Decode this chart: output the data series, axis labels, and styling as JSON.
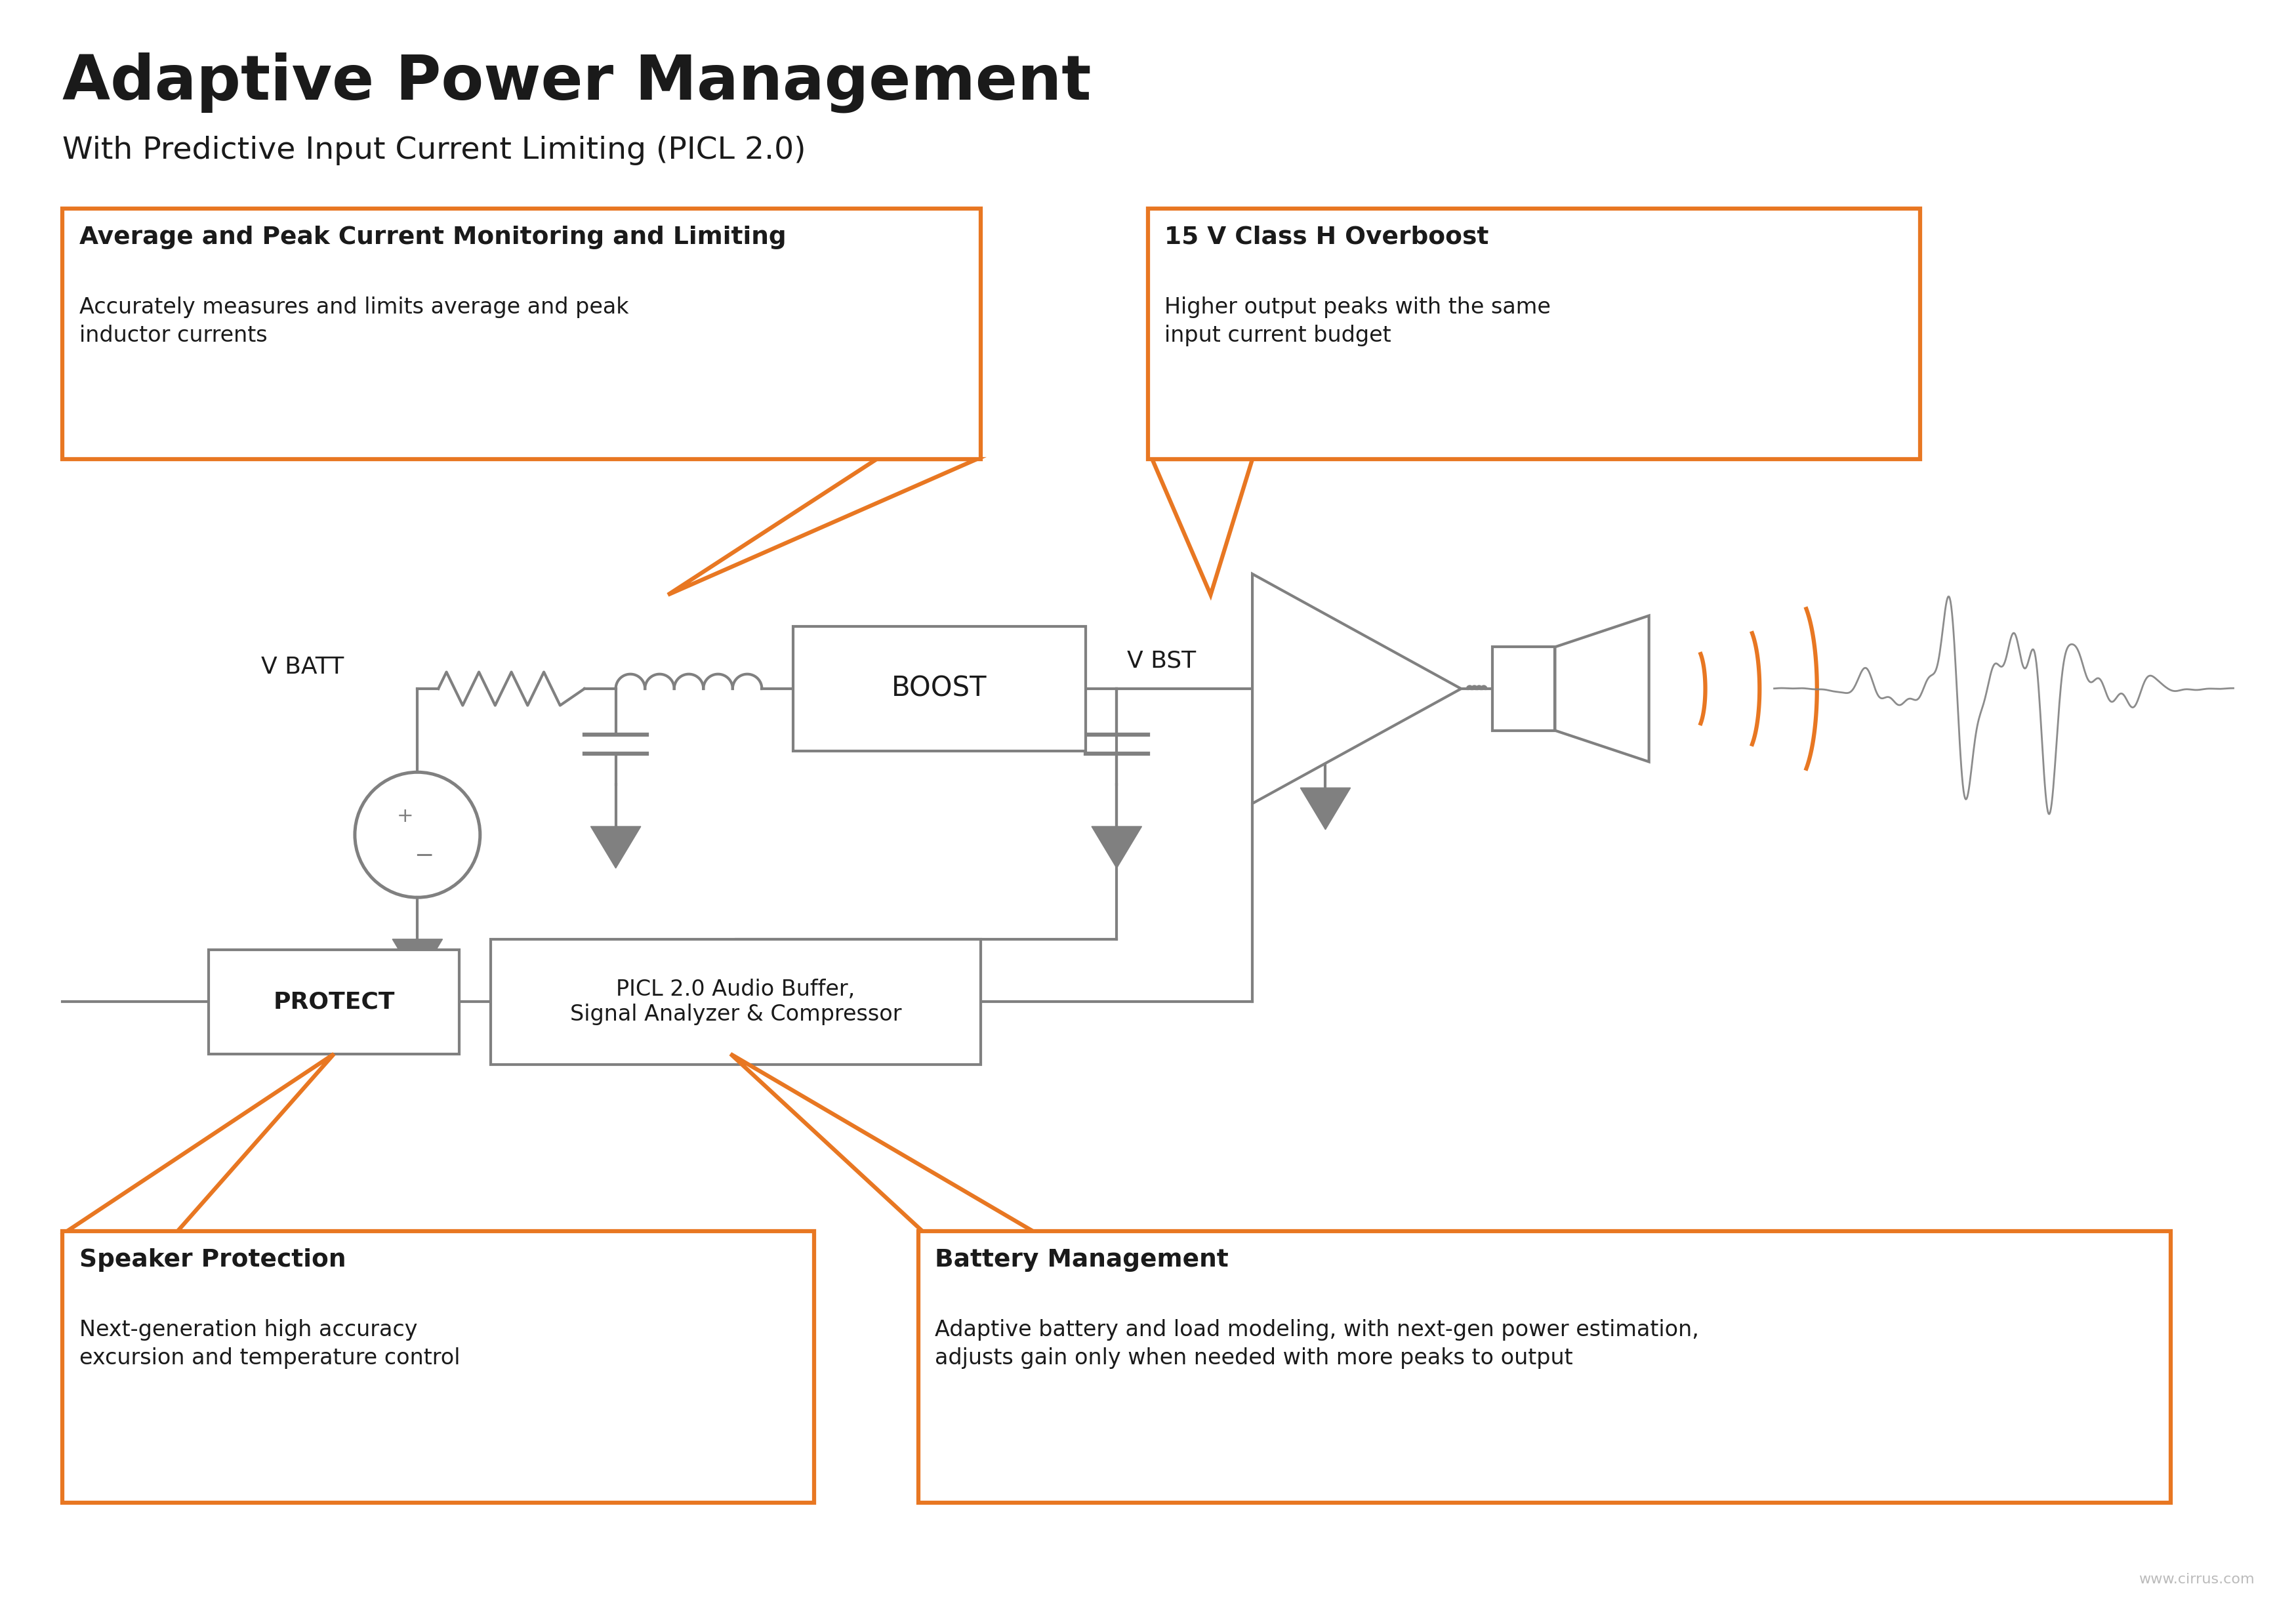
{
  "title": "Adaptive Power Management",
  "subtitle": "With Predictive Input Current Limiting (PICL 2.0)",
  "bg_color": "#ffffff",
  "orange_color": "#E87722",
  "circuit_color": "#808080",
  "dark_color": "#1a1a1a",
  "box1_title": "Average and Peak Current Monitoring and Limiting",
  "box1_body": "Accurately measures and limits average and peak\ninductor currents",
  "box2_title": "15 V Class H Overboost",
  "box2_body": "Higher output peaks with the same\ninput current budget",
  "box3_title": "Speaker Protection",
  "box3_body": "Next-generation high accuracy\nexcursion and temperature control",
  "box4_title": "Battery Management",
  "box4_body": "Adaptive battery and load modeling, with next-gen power estimation,\nadjusts gain only when needed with more peaks to output",
  "protect_label": "PROTECT",
  "picl_label": "PICL 2.0 Audio Buffer,\nSignal Analyzer & Compressor",
  "boost_label": "BOOST",
  "vbatt_label": "V BATT",
  "vbst_label": "V BST",
  "watermark": "www.cirrus.com"
}
